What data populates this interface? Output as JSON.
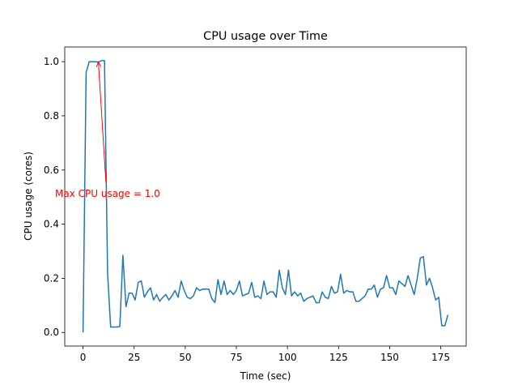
{
  "chart_data": {
    "type": "line",
    "title": "CPU usage over Time",
    "xlabel": "Time (sec)",
    "ylabel": "CPU usage (cores)",
    "color": "#1f77b4",
    "x": [
      0,
      1.5,
      3,
      4.5,
      6,
      7.5,
      9,
      10.5,
      12,
      13.5,
      15,
      16.5,
      18,
      19.5,
      21,
      22.5,
      24,
      25.5,
      27,
      28.5,
      30,
      31.5,
      33,
      34.5,
      36,
      37.5,
      39,
      40.5,
      42,
      43.5,
      45,
      46.5,
      48,
      49.5,
      51,
      52.5,
      54,
      55.5,
      57,
      58.5,
      60,
      61.5,
      63,
      64.5,
      66,
      67.5,
      69,
      70.5,
      72,
      73.5,
      75,
      76.5,
      78,
      79.5,
      81,
      82.5,
      84,
      85.5,
      87,
      88.5,
      90,
      91.5,
      93,
      94.5,
      96,
      97.5,
      99,
      100.5,
      102,
      103.5,
      105,
      106.5,
      108,
      109.5,
      111,
      112.5,
      114,
      115.5,
      117,
      118.5,
      120,
      121.5,
      123,
      124.5,
      126,
      127.5,
      129,
      130.5,
      132,
      133.5,
      135,
      136.5,
      138,
      139.5,
      141,
      142.5,
      144,
      145.5,
      147,
      148.5,
      150,
      151.5,
      153,
      154.5,
      156,
      157.5,
      159,
      160.5,
      162,
      163.5,
      165,
      166.5,
      168,
      169.5,
      171,
      172.5,
      174,
      175.5,
      177,
      178.5
    ],
    "values": [
      0,
      0.96,
      1.0,
      1.0,
      1.0,
      0.998,
      1.004,
      1.004,
      0.22,
      0.02,
      0.02,
      0.02,
      0.022,
      0.285,
      0.095,
      0.145,
      0.145,
      0.12,
      0.185,
      0.19,
      0.13,
      0.15,
      0.165,
      0.12,
      0.14,
      0.115,
      0.13,
      0.14,
      0.12,
      0.135,
      0.155,
      0.13,
      0.19,
      0.155,
      0.13,
      0.125,
      0.135,
      0.165,
      0.155,
      0.16,
      0.16,
      0.16,
      0.125,
      0.11,
      0.195,
      0.14,
      0.19,
      0.14,
      0.155,
      0.14,
      0.155,
      0.19,
      0.135,
      0.14,
      0.145,
      0.185,
      0.13,
      0.135,
      0.125,
      0.19,
      0.14,
      0.15,
      0.15,
      0.13,
      0.23,
      0.165,
      0.14,
      0.23,
      0.135,
      0.15,
      0.135,
      0.145,
      0.115,
      0.125,
      0.13,
      0.135,
      0.11,
      0.11,
      0.15,
      0.13,
      0.125,
      0.17,
      0.145,
      0.15,
      0.215,
      0.145,
      0.155,
      0.15,
      0.15,
      0.115,
      0.115,
      0.125,
      0.135,
      0.16,
      0.16,
      0.175,
      0.13,
      0.16,
      0.165,
      0.21,
      0.165,
      0.165,
      0.14,
      0.19,
      0.18,
      0.17,
      0.21,
      0.175,
      0.14,
      0.2,
      0.275,
      0.28,
      0.175,
      0.2,
      0.165,
      0.12,
      0.13,
      0.025,
      0.025,
      0.065
    ],
    "xlim": [
      -8.95,
      187.45
    ],
    "ylim": [
      -0.0502,
      1.0542
    ],
    "xticks": [
      0,
      25,
      50,
      75,
      100,
      125,
      150,
      175
    ],
    "yticks": [
      {
        "value": 0,
        "label": "0.0"
      },
      {
        "value": 0.2,
        "label": "0.2"
      },
      {
        "value": 0.4,
        "label": "0.4"
      },
      {
        "value": 0.6,
        "label": "0.6"
      },
      {
        "value": 0.8,
        "label": "0.8"
      },
      {
        "value": 1.0,
        "label": "1.0"
      }
    ],
    "annotation": {
      "text": "Max CPU usage = 1.0",
      "xy": [
        7.5,
        1.0
      ],
      "xytext": [
        12,
        0.5
      ],
      "color": "#ff0000"
    }
  }
}
